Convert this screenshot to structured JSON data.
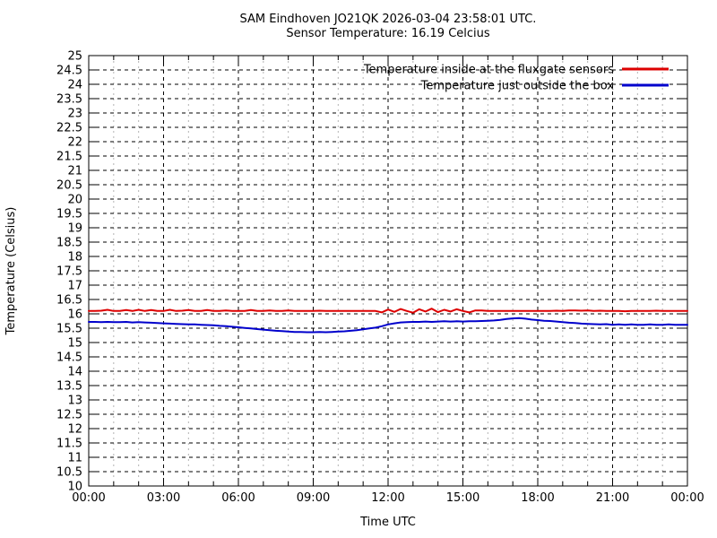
{
  "chart_data": {
    "type": "line",
    "title": "SAM Eindhoven JO21QK 2026-03-04 23:58:01 UTC.",
    "subtitle": "Sensor Temperature: 16.19 Celcius",
    "xlabel": "Time UTC",
    "ylabel": "Temperature (Celsius)",
    "xlim": [
      0,
      24
    ],
    "ylim": [
      10,
      25
    ],
    "y_step": 0.5,
    "x_major_step_hours": 3,
    "x_minor_step_hours": 1,
    "grid": true,
    "legend_position": "top-right-inside",
    "x_tick_labels": [
      "00:00",
      "03:00",
      "06:00",
      "09:00",
      "12:00",
      "15:00",
      "18:00",
      "21:00",
      "00:00"
    ],
    "x_start": 0,
    "x_step": 0.25,
    "series": [
      {
        "key": "inside-fluxgate-sensors",
        "name": "Temperature inside at the fluxgate sensors",
        "color": "#dd0000",
        "values": [
          16.1,
          16.1,
          16.11,
          16.14,
          16.1,
          16.1,
          16.13,
          16.1,
          16.14,
          16.1,
          16.13,
          16.1,
          16.1,
          16.14,
          16.1,
          16.11,
          16.13,
          16.1,
          16.1,
          16.13,
          16.1,
          16.1,
          16.12,
          16.1,
          16.1,
          16.1,
          16.13,
          16.1,
          16.1,
          16.12,
          16.1,
          16.1,
          16.12,
          16.1,
          16.1,
          16.1,
          16.1,
          16.11,
          16.1,
          16.1,
          16.1,
          16.1,
          16.1,
          16.1,
          16.1,
          16.1,
          16.1,
          16.05,
          16.15,
          16.07,
          16.17,
          16.1,
          16.04,
          16.16,
          16.08,
          16.18,
          16.06,
          16.14,
          16.08,
          16.16,
          16.1,
          16.05,
          16.12,
          16.12,
          16.1,
          16.1,
          16.1,
          16.1,
          16.1,
          16.1,
          16.1,
          16.1,
          16.1,
          16.1,
          16.1,
          16.11,
          16.1,
          16.12,
          16.12,
          16.11,
          16.12,
          16.1,
          16.11,
          16.1,
          16.1,
          16.1,
          16.09,
          16.1,
          16.1,
          16.1,
          16.1,
          16.11,
          16.1,
          16.1,
          16.1,
          16.1,
          16.1
        ]
      },
      {
        "key": "outside-box",
        "name": "Temperature just outside the box",
        "color": "#0000cc",
        "values": [
          15.72,
          15.72,
          15.71,
          15.72,
          15.71,
          15.71,
          15.72,
          15.7,
          15.71,
          15.7,
          15.69,
          15.68,
          15.67,
          15.66,
          15.65,
          15.64,
          15.63,
          15.63,
          15.62,
          15.61,
          15.6,
          15.58,
          15.57,
          15.55,
          15.53,
          15.51,
          15.49,
          15.47,
          15.45,
          15.43,
          15.41,
          15.4,
          15.38,
          15.37,
          15.37,
          15.36,
          15.36,
          15.37,
          15.36,
          15.37,
          15.38,
          15.39,
          15.41,
          15.43,
          15.46,
          15.49,
          15.52,
          15.57,
          15.63,
          15.67,
          15.7,
          15.71,
          15.72,
          15.72,
          15.73,
          15.72,
          15.73,
          15.74,
          15.73,
          15.74,
          15.73,
          15.74,
          15.74,
          15.75,
          15.76,
          15.77,
          15.79,
          15.82,
          15.84,
          15.85,
          15.83,
          15.8,
          15.78,
          15.76,
          15.75,
          15.73,
          15.71,
          15.69,
          15.68,
          15.66,
          15.65,
          15.64,
          15.63,
          15.64,
          15.62,
          15.63,
          15.62,
          15.63,
          15.62,
          15.62,
          15.63,
          15.62,
          15.62,
          15.63,
          15.62,
          15.62,
          15.62
        ]
      }
    ],
    "colors": {
      "grid_major": "#000000",
      "grid_minor": "#b3b3b3",
      "border": "#000000",
      "text": "#000000"
    }
  }
}
